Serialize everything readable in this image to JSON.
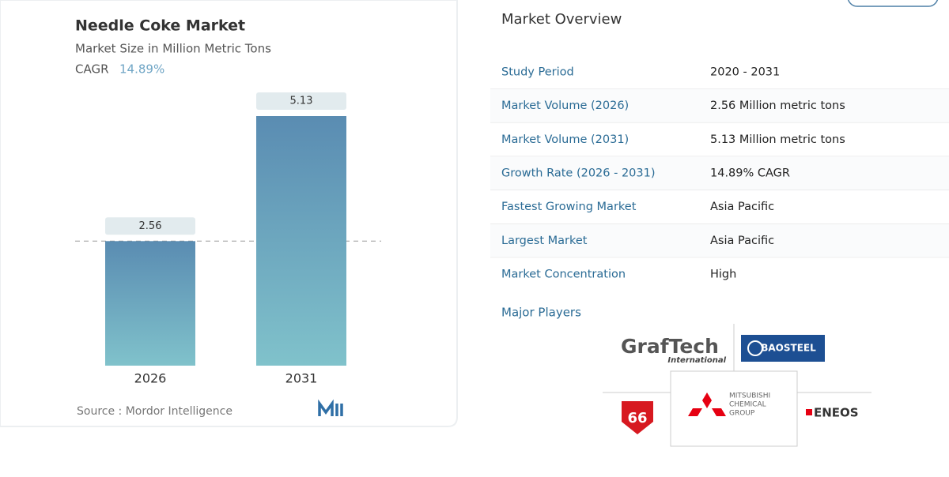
{
  "chart_data": {
    "type": "bar",
    "title": "Needle Coke Market",
    "subtitle": "Market Size in Million Metric Tons",
    "cagr_label": "CAGR",
    "cagr_value": "14.89%",
    "categories": [
      "2026",
      "2031"
    ],
    "values": [
      2.56,
      5.13
    ],
    "source": "Source :  Mordor Intelligence"
  },
  "overview": {
    "title": "Market Overview",
    "rows": [
      [
        "Study Period",
        "2020 - 2031"
      ],
      [
        "Market Volume (2026)",
        "2.56 Million metric tons"
      ],
      [
        "Market Volume (2031)",
        "5.13 Million metric tons"
      ],
      [
        "Growth Rate (2026 - 2031)",
        "14.89% CAGR"
      ],
      [
        "Fastest Growing Market",
        "Asia Pacific"
      ],
      [
        "Largest Market",
        "Asia Pacific"
      ],
      [
        "Market Concentration",
        "High"
      ]
    ],
    "players_title": "Major Players",
    "players": {
      "graftech": "GrafTech",
      "graftech_sub": "International",
      "baosteel": "BAOSTEEL",
      "phillips": "66",
      "mitsubishi": [
        "MITSUBISHI",
        "CHEMICAL",
        "GROUP"
      ],
      "eneos": "ENEOS"
    }
  }
}
